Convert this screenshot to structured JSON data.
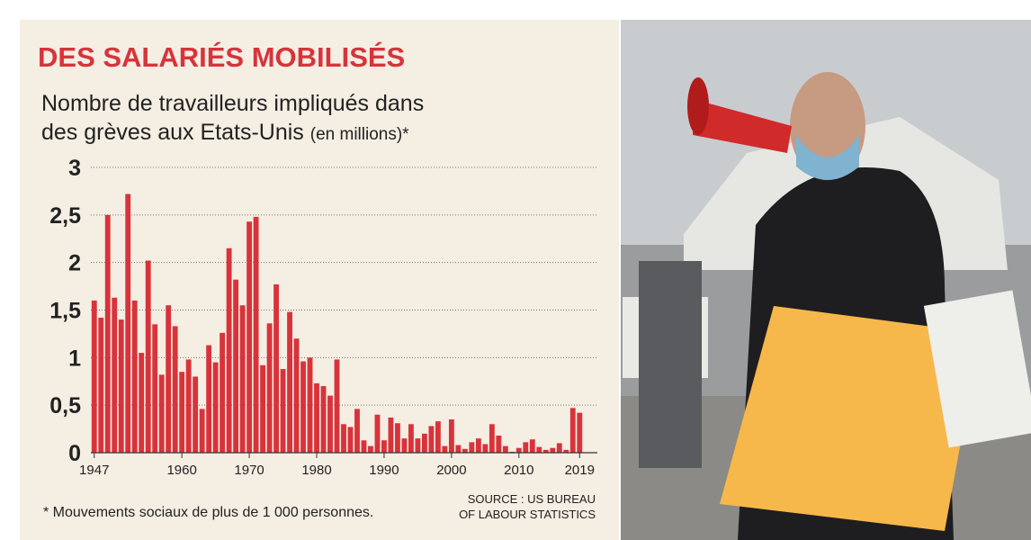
{
  "chart_data": {
    "type": "bar",
    "title": "DES SALARIÉS MOBILISÉS",
    "subtitle_lines": [
      "Nombre de travailleurs impliqués dans",
      "des grèves aux Etats-Unis"
    ],
    "unit": "(en millions)*",
    "footnote": "* Mouvements sociaux de plus de 1 000 personnes.",
    "source_lines": [
      "SOURCE : US BUREAU",
      "OF LABOUR STATISTICS"
    ],
    "color": "#d8333b",
    "grid": true,
    "x": [
      1947,
      1948,
      1949,
      1950,
      1951,
      1952,
      1953,
      1954,
      1955,
      1956,
      1957,
      1958,
      1959,
      1960,
      1961,
      1962,
      1963,
      1964,
      1965,
      1966,
      1967,
      1968,
      1969,
      1970,
      1971,
      1972,
      1973,
      1974,
      1975,
      1976,
      1977,
      1978,
      1979,
      1980,
      1981,
      1982,
      1983,
      1984,
      1985,
      1986,
      1987,
      1988,
      1989,
      1990,
      1991,
      1992,
      1993,
      1994,
      1995,
      1996,
      1997,
      1998,
      1999,
      2000,
      2001,
      2002,
      2003,
      2004,
      2005,
      2006,
      2007,
      2008,
      2009,
      2010,
      2011,
      2012,
      2013,
      2014,
      2015,
      2016,
      2017,
      2018,
      2019
    ],
    "values": [
      1.6,
      1.42,
      2.5,
      1.63,
      1.4,
      2.72,
      1.6,
      1.05,
      2.02,
      1.35,
      0.82,
      1.55,
      1.33,
      0.85,
      0.98,
      0.8,
      0.46,
      1.13,
      0.95,
      1.26,
      2.15,
      1.82,
      1.55,
      2.43,
      2.48,
      0.92,
      1.36,
      1.77,
      0.88,
      1.48,
      1.2,
      0.96,
      1.0,
      0.73,
      0.7,
      0.6,
      0.98,
      0.3,
      0.27,
      0.46,
      0.13,
      0.07,
      0.4,
      0.13,
      0.37,
      0.31,
      0.15,
      0.3,
      0.15,
      0.2,
      0.28,
      0.33,
      0.07,
      0.35,
      0.08,
      0.04,
      0.11,
      0.15,
      0.09,
      0.3,
      0.18,
      0.07,
      0.01,
      0.05,
      0.11,
      0.14,
      0.06,
      0.03,
      0.05,
      0.1,
      0.03,
      0.47,
      0.42
    ],
    "xlim": [
      1946.5,
      2019.5
    ],
    "xticks": [
      1947,
      1960,
      1970,
      1980,
      1990,
      2000,
      2010,
      2019
    ],
    "ylim": [
      0,
      3
    ],
    "yticks": [
      0,
      {
        "value": 0.5,
        "label": "0,5"
      },
      1,
      {
        "value": 1.5,
        "label": "1,5"
      },
      2,
      {
        "value": 2.5,
        "label": "2,5"
      },
      3
    ]
  }
}
